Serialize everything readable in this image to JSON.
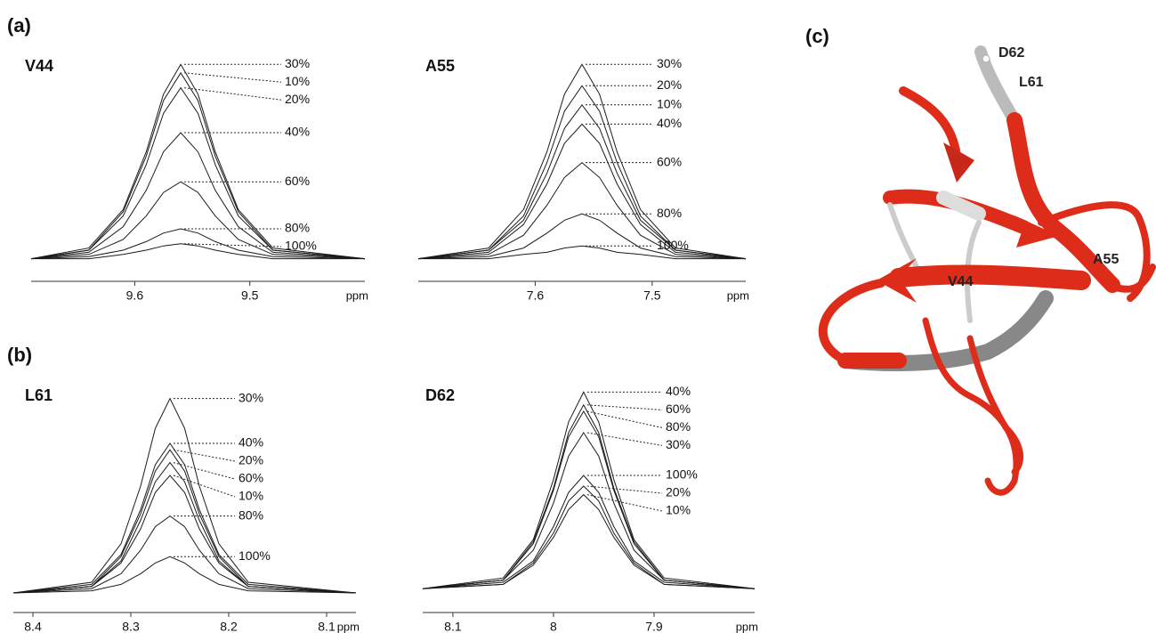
{
  "panel_labels": [
    "(a)",
    "(b)",
    "(c)"
  ],
  "structure": {
    "labels": [
      "D62",
      "L61",
      "A55",
      "V44"
    ]
  },
  "chart_data": [
    {
      "type": "line",
      "title": "V44",
      "xlabel": "ppm",
      "color": "#1a1a1a",
      "x": [
        9.69,
        9.64,
        9.61,
        9.59,
        9.575,
        9.56,
        9.545,
        9.53,
        9.51,
        9.48,
        9.4
      ],
      "xlim": [
        9.69,
        9.4
      ],
      "xticks": [
        9.6,
        9.5
      ],
      "ylim": [
        0,
        100
      ],
      "series": [
        {
          "name": "30%",
          "values": [
            6,
            11,
            29,
            56,
            83,
            97,
            83,
            56,
            29,
            11,
            6
          ]
        },
        {
          "name": "10%",
          "values": [
            6,
            10,
            28,
            54,
            80,
            93,
            80,
            54,
            28,
            10,
            6
          ]
        },
        {
          "name": "20%",
          "values": [
            6,
            10,
            26,
            50,
            74,
            86,
            74,
            50,
            26,
            10,
            6
          ]
        },
        {
          "name": "40%",
          "values": [
            6,
            9,
            21,
            38,
            56,
            65,
            56,
            38,
            21,
            9,
            6
          ]
        },
        {
          "name": "60%",
          "values": [
            6,
            8,
            15,
            26,
            37,
            42,
            37,
            26,
            15,
            8,
            6
          ]
        },
        {
          "name": "80%",
          "values": [
            6,
            7,
            10,
            14,
            18,
            20,
            18,
            14,
            10,
            7,
            6
          ]
        },
        {
          "name": "100%",
          "values": [
            6,
            6,
            8,
            10,
            12,
            13,
            12,
            10,
            8,
            6,
            6
          ]
        }
      ]
    },
    {
      "type": "line",
      "title": "A55",
      "xlabel": "ppm",
      "color": "#1a1a1a",
      "x": [
        7.7,
        7.64,
        7.61,
        7.59,
        7.575,
        7.56,
        7.545,
        7.53,
        7.51,
        7.48,
        7.42
      ],
      "xlim": [
        7.7,
        7.42
      ],
      "xticks": [
        7.6,
        7.5
      ],
      "ylim": [
        0,
        100
      ],
      "series": [
        {
          "name": "30%",
          "values": [
            6,
            11,
            29,
            56,
            83,
            97,
            83,
            56,
            29,
            11,
            6
          ]
        },
        {
          "name": "20%",
          "values": [
            6,
            10,
            26,
            51,
            75,
            87,
            75,
            51,
            26,
            10,
            6
          ]
        },
        {
          "name": "10%",
          "values": [
            6,
            10,
            24,
            46,
            67,
            78,
            67,
            46,
            24,
            10,
            6
          ]
        },
        {
          "name": "40%",
          "values": [
            6,
            9,
            22,
            41,
            60,
            69,
            60,
            41,
            22,
            9,
            6
          ]
        },
        {
          "name": "60%",
          "values": [
            6,
            8,
            17,
            31,
            44,
            51,
            44,
            31,
            17,
            8,
            6
          ]
        },
        {
          "name": "80%",
          "values": [
            6,
            7,
            11,
            18,
            24,
            27,
            24,
            18,
            11,
            7,
            6
          ]
        },
        {
          "name": "100%",
          "values": [
            6,
            6,
            8,
            9,
            11,
            12,
            11,
            9,
            8,
            6,
            6
          ]
        }
      ]
    },
    {
      "type": "line",
      "title": "L61",
      "xlabel": "ppm",
      "color": "#1a1a1a",
      "x": [
        8.42,
        8.34,
        8.31,
        8.29,
        8.275,
        8.26,
        8.245,
        8.23,
        8.21,
        8.18,
        8.07
      ],
      "xlim": [
        8.42,
        8.07
      ],
      "xticks": [
        8.4,
        8.3,
        8.2,
        8.1
      ],
      "ylim": [
        0,
        100
      ],
      "series": [
        {
          "name": "30%",
          "values": [
            5,
            10,
            28,
            55,
            82,
            96,
            82,
            55,
            28,
            10,
            5
          ]
        },
        {
          "name": "40%",
          "values": [
            5,
            9,
            23,
            44,
            65,
            75,
            65,
            44,
            23,
            9,
            5
          ]
        },
        {
          "name": "20%",
          "values": [
            5,
            8,
            22,
            42,
            62,
            72,
            62,
            42,
            22,
            8,
            5
          ]
        },
        {
          "name": "60%",
          "values": [
            5,
            8,
            20,
            39,
            57,
            66,
            57,
            39,
            20,
            8,
            5
          ]
        },
        {
          "name": "10%",
          "values": [
            5,
            8,
            19,
            35,
            52,
            60,
            52,
            35,
            19,
            8,
            5
          ]
        },
        {
          "name": "80%",
          "values": [
            5,
            7,
            14,
            25,
            36,
            41,
            36,
            25,
            14,
            7,
            5
          ]
        },
        {
          "name": "100%",
          "values": [
            5,
            6,
            9,
            14,
            19,
            22,
            19,
            14,
            9,
            6,
            5
          ]
        }
      ]
    },
    {
      "type": "line",
      "title": "D62",
      "xlabel": "ppm",
      "color": "#1a1a1a",
      "x": [
        8.13,
        8.05,
        8.02,
        8.0,
        7.985,
        7.97,
        7.955,
        7.94,
        7.92,
        7.89,
        7.8
      ],
      "xlim": [
        8.13,
        7.8
      ],
      "xticks": [
        8.1,
        8.0,
        7.9
      ],
      "ylim": [
        0,
        100
      ],
      "series": [
        {
          "name": "40%",
          "values": [
            7,
            12,
            30,
            58,
            85,
            99,
            85,
            58,
            30,
            12,
            7
          ]
        },
        {
          "name": "60%",
          "values": [
            7,
            11,
            29,
            54,
            80,
            93,
            80,
            54,
            29,
            11,
            7
          ]
        },
        {
          "name": "80%",
          "values": [
            7,
            11,
            28,
            53,
            78,
            90,
            78,
            53,
            28,
            11,
            7
          ]
        },
        {
          "name": "30%",
          "values": [
            7,
            11,
            25,
            47,
            69,
            80,
            69,
            47,
            25,
            11,
            7
          ]
        },
        {
          "name": "100%",
          "values": [
            7,
            10,
            20,
            36,
            52,
            60,
            52,
            36,
            20,
            10,
            7
          ]
        },
        {
          "name": "20%",
          "values": [
            7,
            9,
            19,
            33,
            48,
            55,
            48,
            33,
            19,
            9,
            7
          ]
        },
        {
          "name": "10%",
          "values": [
            7,
            9,
            18,
            31,
            44,
            51,
            44,
            31,
            18,
            9,
            7
          ]
        }
      ]
    }
  ]
}
